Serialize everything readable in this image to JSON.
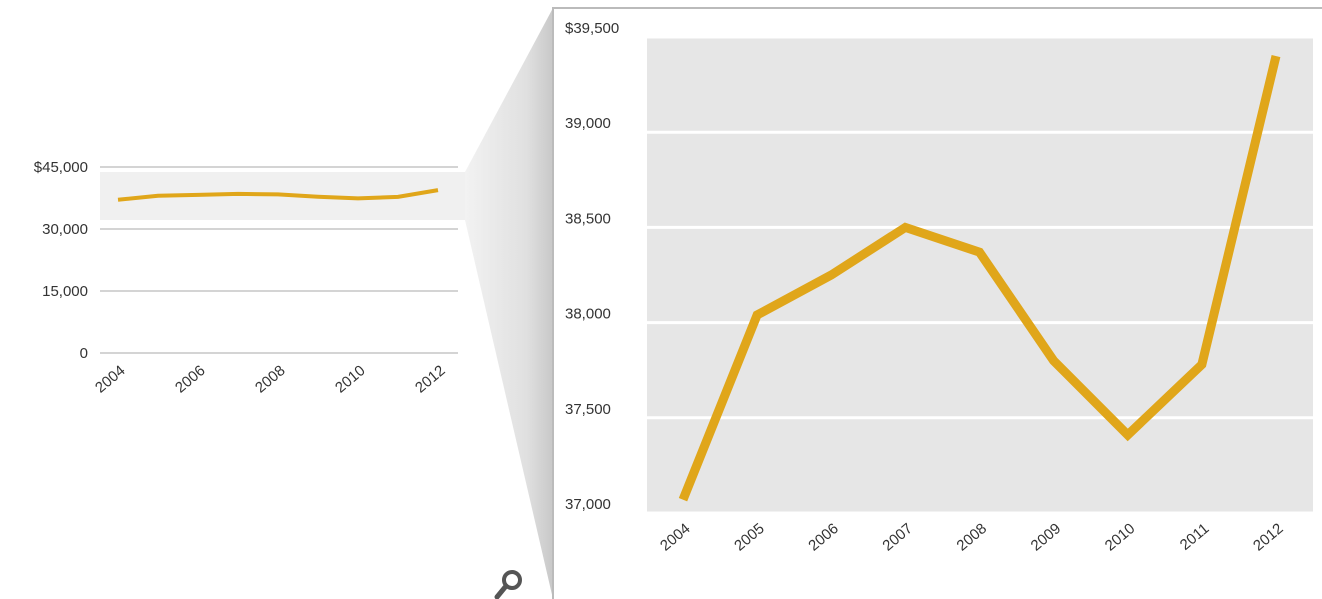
{
  "chart_data": [
    {
      "type": "line",
      "x": [
        2004,
        2005,
        2006,
        2007,
        2008,
        2009,
        2010,
        2011,
        2012
      ],
      "series": [
        {
          "color": "#e0a61a",
          "values": [
            37070,
            38040,
            38250,
            38500,
            38370,
            37800,
            37410,
            37780,
            39400
          ]
        }
      ],
      "xlim": [
        2004,
        2012
      ],
      "xticks": [
        2004,
        2006,
        2008,
        2010,
        2012
      ],
      "ylim": [
        0,
        45000
      ],
      "yticks": [
        0,
        {
          "value": 15000,
          "label": "15,000"
        },
        {
          "value": 30000,
          "label": "30,000"
        },
        {
          "value": 45000,
          "label": "$45,000"
        }
      ],
      "grid": true
    },
    {
      "type": "line",
      "x": [
        2004,
        2005,
        2006,
        2007,
        2008,
        2009,
        2010,
        2011,
        2012
      ],
      "series": [
        {
          "color": "#e0a61a",
          "values": [
            37070,
            38040,
            38250,
            38500,
            38370,
            37800,
            37410,
            37780,
            39400
          ]
        }
      ],
      "xlim": [
        2004,
        2012
      ],
      "xticks": [
        2004,
        2005,
        2006,
        2007,
        2008,
        2009,
        2010,
        2011,
        2012
      ],
      "ylim": [
        37000,
        39500
      ],
      "yticks": [
        {
          "value": 37000,
          "label": "37,000"
        },
        {
          "value": 37500,
          "label": "37,500"
        },
        {
          "value": 38000,
          "label": "38,000"
        },
        {
          "value": 38500,
          "label": "38,500"
        },
        {
          "value": 39000,
          "label": "39,000"
        },
        {
          "value": 39500,
          "label": "$39,500"
        }
      ],
      "grid": true
    }
  ]
}
